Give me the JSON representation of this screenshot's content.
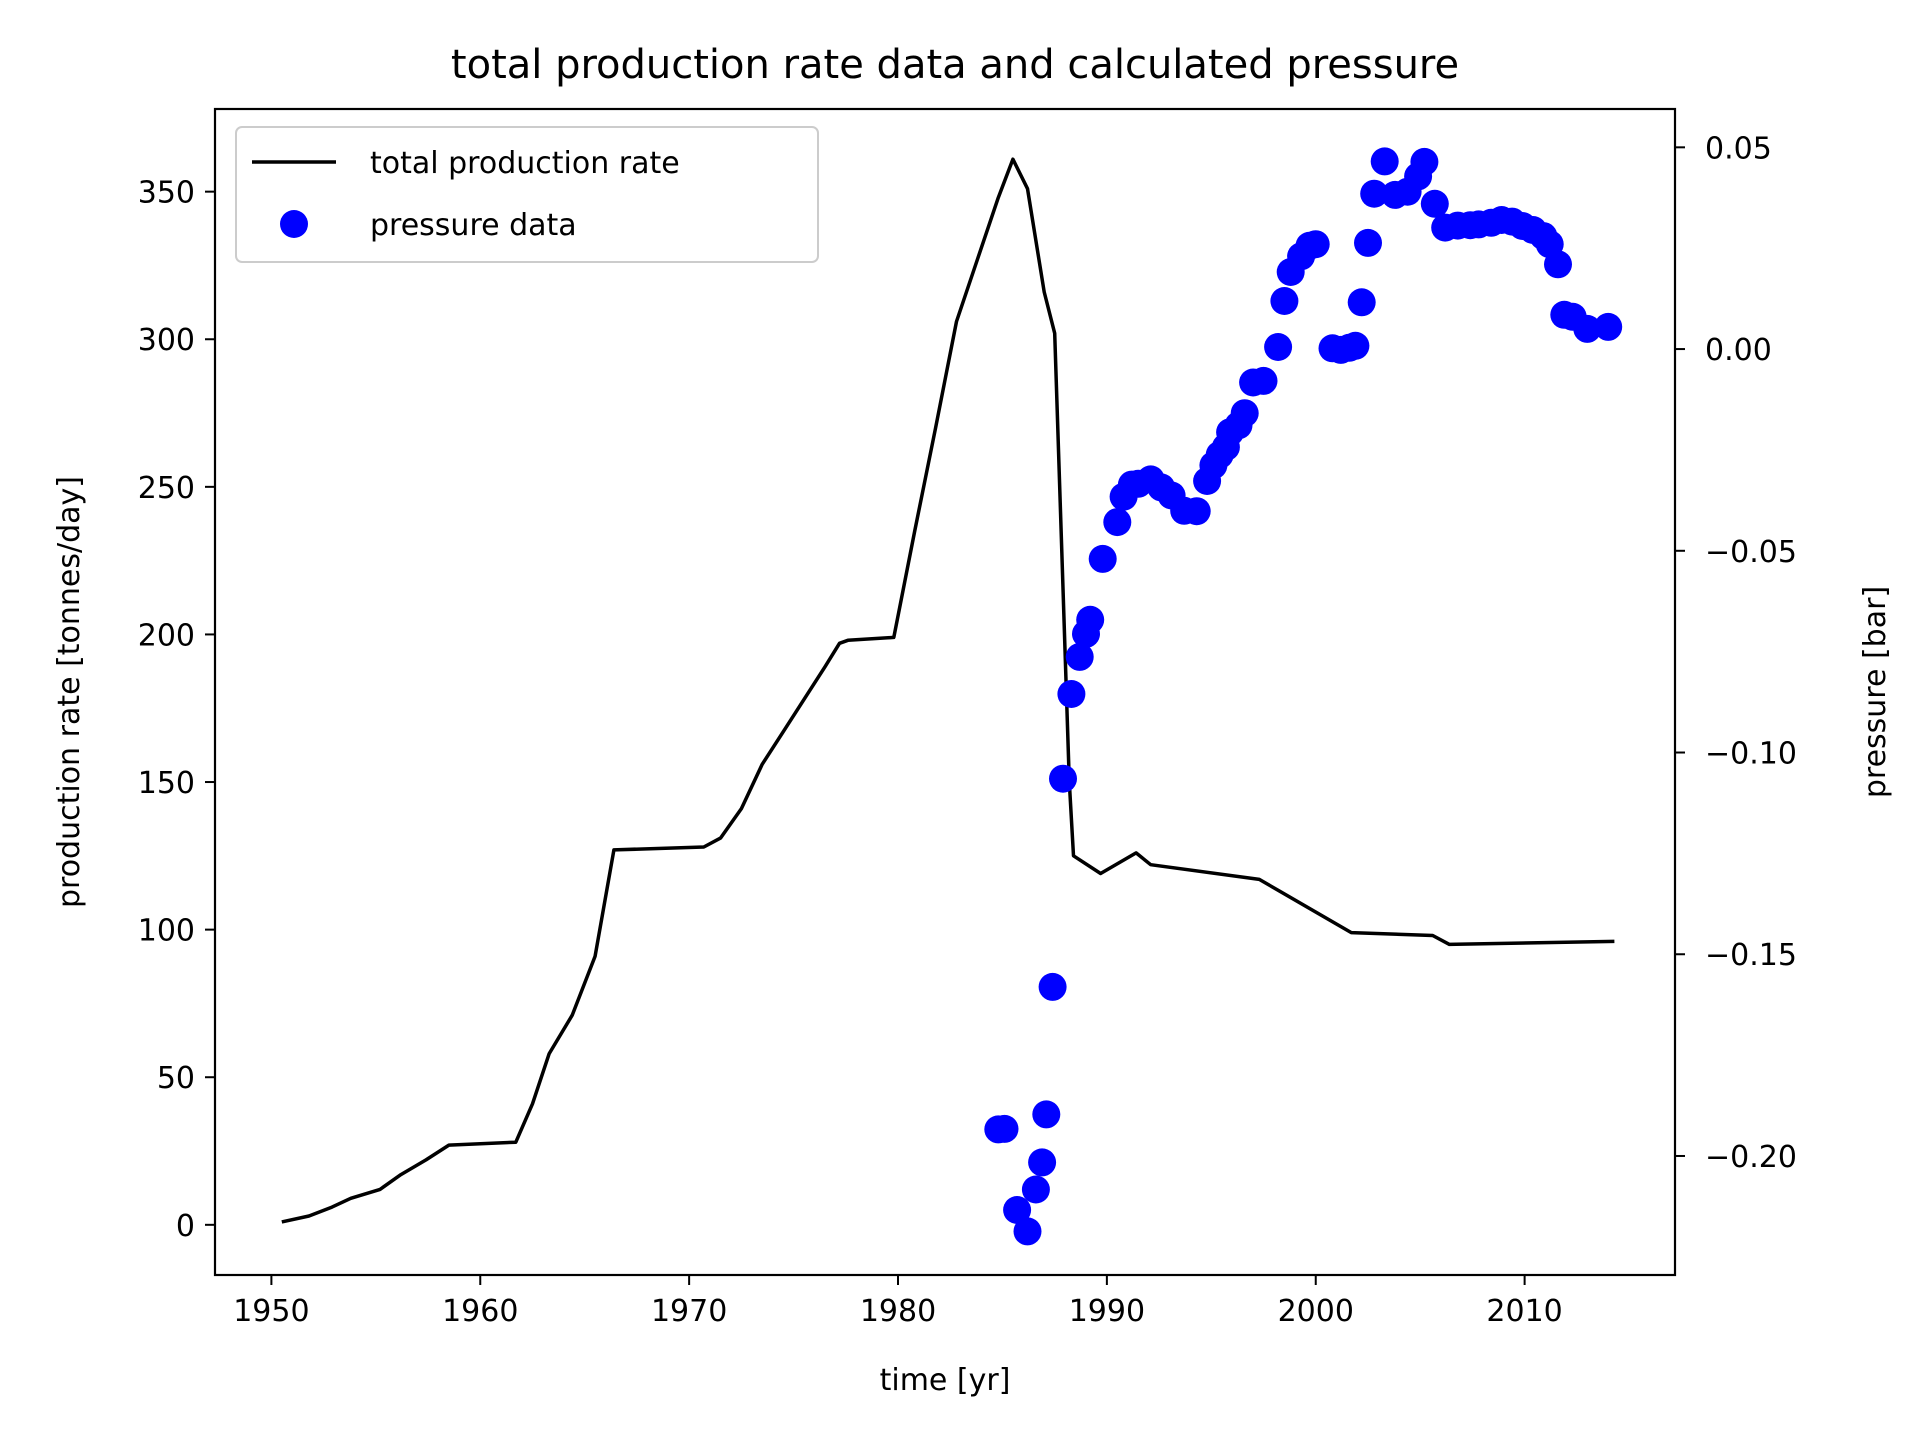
{
  "chart_data": {
    "type": "line",
    "title": "total production rate data and calculated pressure",
    "xlabel": "time [yr]",
    "ylabel": "production rate [tonnes/day]",
    "y2label": "pressure [bar]",
    "xlim": [
      1947.3,
      2017.2
    ],
    "ylim": [
      -17,
      378
    ],
    "y2lim": [
      -0.2295,
      0.0595
    ],
    "xticks": [
      1950,
      1960,
      1970,
      1980,
      1990,
      2000,
      2010
    ],
    "yticks": [
      0,
      50,
      100,
      150,
      200,
      250,
      300,
      350
    ],
    "y2ticks": [
      0.05,
      0.0,
      -0.05,
      -0.1,
      -0.15,
      -0.2
    ],
    "y2tick_labels": [
      "0.05",
      "0.00",
      "−0.05",
      "−0.10",
      "−0.15",
      "−0.20"
    ],
    "legend_position": "top-left",
    "colors": {
      "production": "#000000",
      "pressure": "#0000ff"
    },
    "series": [
      {
        "name": "total production rate",
        "axis": "left",
        "style": "line",
        "x": [
          1950.5,
          1951.8,
          1952.9,
          1953.8,
          1955.2,
          1956.2,
          1957.4,
          1958.5,
          1961.7,
          1962.5,
          1963.3,
          1964.4,
          1965.5,
          1966.4,
          1970.7,
          1971.5,
          1972.5,
          1973.5,
          1974.5,
          1975.5,
          1976.5,
          1977.2,
          1977.6,
          1979.8,
          1980.8,
          1981.8,
          1982.8,
          1983.8,
          1984.8,
          1985.5,
          1986.2,
          1987.0,
          1987.5,
          1988.2,
          1988.4,
          1989.7,
          1991.4,
          1992.1,
          1997.3,
          2001.7,
          2005.6,
          2006.4,
          2014.3
        ],
        "y": [
          1,
          3,
          6,
          9,
          12,
          17,
          22,
          27,
          28,
          41,
          58,
          71,
          91,
          127,
          128,
          131,
          141,
          156,
          167,
          178,
          189,
          197,
          198,
          199,
          235,
          270,
          306,
          327,
          348,
          361,
          351,
          316,
          302,
          150,
          125,
          119,
          126,
          122,
          117,
          99,
          98,
          95,
          96
        ]
      },
      {
        "name": "pressure data",
        "axis": "right",
        "style": "scatter",
        "x": [
          1984.8,
          1985.1,
          1985.7,
          1986.2,
          1986.6,
          1986.9,
          1987.1,
          1987.4,
          1987.9,
          1988.3,
          1988.7,
          1989.0,
          1989.2,
          1989.8,
          1990.5,
          1990.8,
          1991.2,
          1991.5,
          1992.1,
          1992.6,
          1993.1,
          1993.7,
          1994.3,
          1994.8,
          1995.1,
          1995.4,
          1995.7,
          1995.9,
          1996.3,
          1996.6,
          1997.0,
          1997.5,
          1998.2,
          1998.5,
          1998.8,
          1999.3,
          1999.7,
          2000.0,
          2000.8,
          2001.2,
          2001.6,
          2001.9,
          2002.2,
          2002.5,
          2002.8,
          2003.3,
          2003.8,
          2004.4,
          2004.9,
          2005.2,
          2005.7,
          2006.2,
          2006.8,
          2007.4,
          2007.8,
          2008.4,
          2008.9,
          2009.4,
          2009.9,
          2010.4,
          2010.9,
          2011.2,
          2011.6,
          2011.9,
          2012.3,
          2013.0,
          2014.0
        ],
        "y": [
          -0.1934,
          -0.1933,
          -0.2134,
          -0.2187,
          -0.2083,
          -0.2016,
          -0.1897,
          -0.1581,
          -0.1065,
          -0.0855,
          -0.0763,
          -0.0706,
          -0.0671,
          -0.052,
          -0.0429,
          -0.0366,
          -0.0336,
          -0.0334,
          -0.0323,
          -0.0343,
          -0.0363,
          -0.0401,
          -0.0402,
          -0.0327,
          -0.0288,
          -0.0262,
          -0.0243,
          -0.0206,
          -0.0189,
          -0.0159,
          -0.0083,
          -0.0079,
          0.0005,
          0.0119,
          0.0191,
          0.023,
          0.0256,
          0.026,
          0.0002,
          -0.0002,
          0.0003,
          0.0008,
          0.0116,
          0.0263,
          0.0385,
          0.0465,
          0.0382,
          0.039,
          0.0428,
          0.0464,
          0.036,
          0.0301,
          0.0306,
          0.0307,
          0.0309,
          0.0313,
          0.032,
          0.0316,
          0.0305,
          0.0295,
          0.028,
          0.026,
          0.021,
          0.0085,
          0.008,
          0.005,
          0.0055
        ]
      }
    ]
  }
}
